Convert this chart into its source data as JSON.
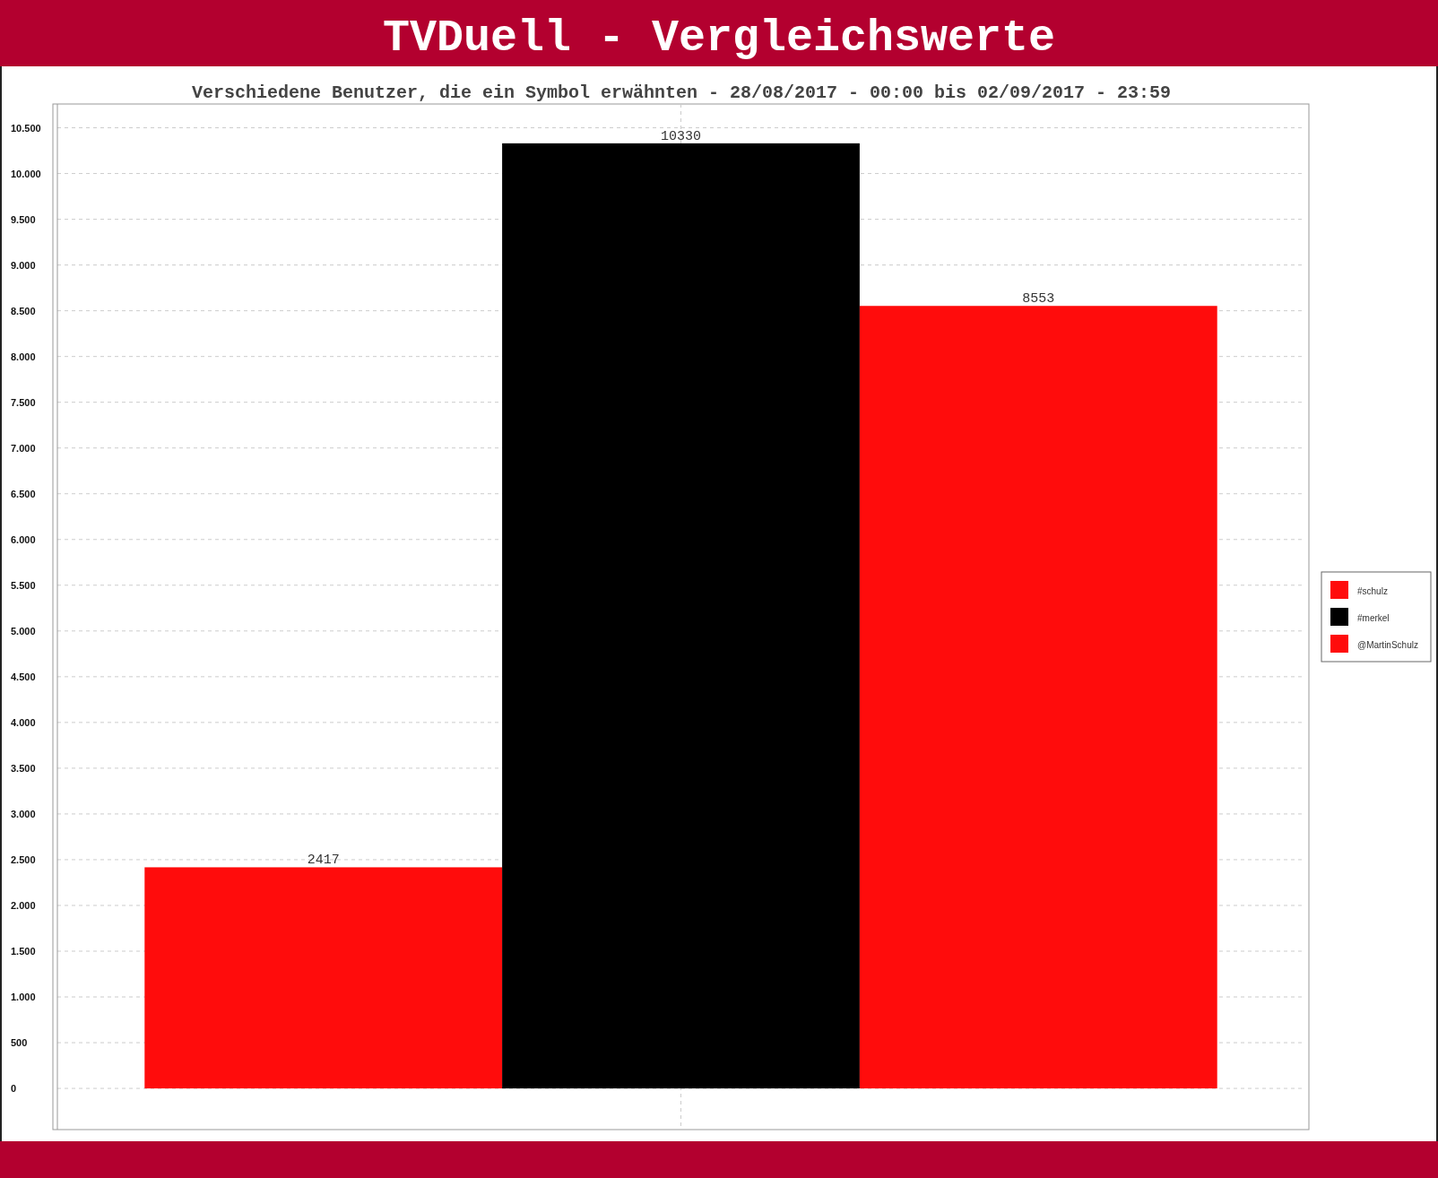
{
  "chart_data": {
    "type": "bar",
    "title": "TVDuell - Vergleichswerte",
    "subtitle": "Verschiedene Benutzer, die ein Symbol erwähnten - 28/08/2017 - 00:00 bis 02/09/2017 - 23:59",
    "categories": [
      null
    ],
    "series": [
      {
        "name": "#schulz",
        "color": "#ff0c0c",
        "values": [
          2417
        ]
      },
      {
        "name": "#merkel",
        "color": "#000000",
        "values": [
          10330
        ]
      },
      {
        "name": "@MartinSchulz",
        "color": "#ff0c0c",
        "values": [
          8553
        ]
      }
    ],
    "ylim": [
      -450,
      10760
    ],
    "yticks": [
      0,
      500,
      {
        "value": 1000,
        "label": "1.000"
      },
      {
        "value": 1500,
        "label": "1.500"
      },
      {
        "value": 2000,
        "label": "2.000"
      },
      {
        "value": 2500,
        "label": "2.500"
      },
      {
        "value": 3000,
        "label": "3.000"
      },
      {
        "value": 3500,
        "label": "3.500"
      },
      {
        "value": 4000,
        "label": "4.000"
      },
      {
        "value": 4500,
        "label": "4.500"
      },
      {
        "value": 5000,
        "label": "5.000"
      },
      {
        "value": 5500,
        "label": "5.500"
      },
      {
        "value": 6000,
        "label": "6.000"
      },
      {
        "value": 6500,
        "label": "6.500"
      },
      {
        "value": 7000,
        "label": "7.000"
      },
      {
        "value": 7500,
        "label": "7.500"
      },
      {
        "value": 8000,
        "label": "8.000"
      },
      {
        "value": 8500,
        "label": "8.500"
      },
      {
        "value": 9000,
        "label": "9.000"
      },
      {
        "value": 9500,
        "label": "9.500"
      },
      {
        "value": 10000,
        "label": "10.000"
      },
      {
        "value": 10500,
        "label": "10.500"
      }
    ],
    "grid": true,
    "legend": "right",
    "data_labels": true
  }
}
